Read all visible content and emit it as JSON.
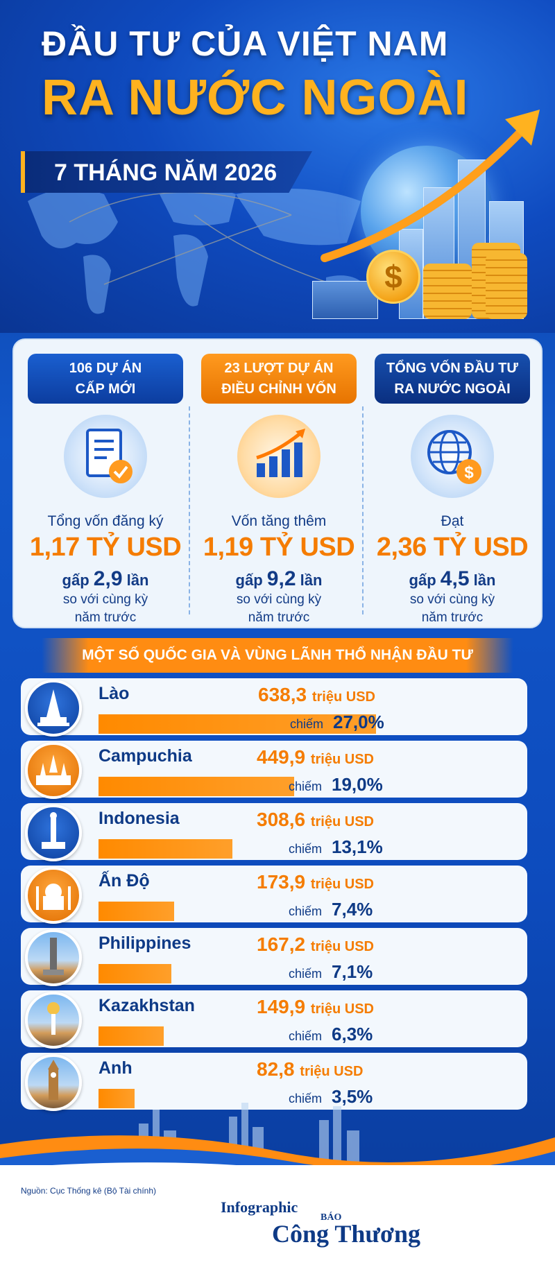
{
  "header": {
    "title_line1": "ĐẦU TƯ CỦA VIỆT NAM",
    "title_line2": "RA NƯỚC NGOÀI",
    "period": "7 THÁNG NĂM 2026"
  },
  "summary": [
    {
      "pill": "106 DỰ ÁN\nCẤP MỚI",
      "pill_line1": "106 DỰ ÁN",
      "pill_line2": "CẤP MỚI",
      "icon": "document-check-icon",
      "label": "Tổng vốn đăng ký",
      "value": "1,17 TỶ USD",
      "multiplier_prefix": "gấp",
      "multiplier_value": "2,9",
      "multiplier_suffix": "lần",
      "compare_line1": "so với cùng kỳ",
      "compare_line2": "năm trước"
    },
    {
      "pill_line1": "23 LƯỢT DỰ ÁN",
      "pill_line2": "ĐIỀU CHỈNH VỐN",
      "icon": "growth-chart-icon",
      "label": "Vốn tăng thêm",
      "value": "1,19 TỶ USD",
      "multiplier_prefix": "gấp",
      "multiplier_value": "9,2",
      "multiplier_suffix": "lần",
      "compare_line1": "so với cùng kỳ",
      "compare_line2": "năm trước"
    },
    {
      "pill_line1": "TỔNG VỐN ĐẦU TƯ",
      "pill_line2": "RA NƯỚC NGOÀI",
      "icon": "globe-dollar-icon",
      "label": "Đạt",
      "value": "2,36 TỶ USD",
      "multiplier_prefix": "gấp",
      "multiplier_value": "4,5",
      "multiplier_suffix": "lần",
      "compare_line1": "so với cùng kỳ",
      "compare_line2": "năm trước"
    }
  ],
  "section_title": "MỘT SỐ QUỐC GIA VÀ VÙNG LÃNH THỔ NHẬN ĐẦU TƯ",
  "countries": [
    {
      "name": "Lào",
      "amount": "638,3",
      "unit": "triệu USD",
      "share_label": "chiếm",
      "share": "27,0%",
      "value": 638.3,
      "icon": "that-luang-stupa-icon",
      "badge": "blue"
    },
    {
      "name": "Campuchia",
      "amount": "449,9",
      "unit": "triệu USD",
      "share_label": "chiếm",
      "share": "19,0%",
      "value": 449.9,
      "icon": "angkor-wat-icon",
      "badge": "orange"
    },
    {
      "name": "Indonesia",
      "amount": "308,6",
      "unit": "triệu USD",
      "share_label": "chiếm",
      "share": "13,1%",
      "value": 308.6,
      "icon": "monas-monument-icon",
      "badge": "blue"
    },
    {
      "name": "Ấn Độ",
      "amount": "173,9",
      "unit": "triệu USD",
      "share_label": "chiếm",
      "share": "7,4%",
      "value": 173.9,
      "icon": "taj-mahal-icon",
      "badge": "orange"
    },
    {
      "name": "Philippines",
      "amount": "167,2",
      "unit": "triệu USD",
      "share_label": "chiếm",
      "share": "7,1%",
      "value": 167.2,
      "icon": "rizal-monument-icon",
      "badge": "photo"
    },
    {
      "name": "Kazakhstan",
      "amount": "149,9",
      "unit": "triệu USD",
      "share_label": "chiếm",
      "share": "6,3%",
      "value": 149.9,
      "icon": "baiterek-tower-icon",
      "badge": "photo"
    },
    {
      "name": "Anh",
      "amount": "82,8",
      "unit": "triệu USD",
      "share_label": "chiếm",
      "share": "3,5%",
      "value": 82.8,
      "icon": "big-ben-icon",
      "badge": "photo"
    }
  ],
  "footer": {
    "source": "Nguồn: Cục Thống kê (Bộ Tài chính)",
    "infographic": "Infographic",
    "brand_small": "BÁO",
    "brand": "Công Thương"
  },
  "colors": {
    "accent_orange": "#f57c00",
    "navy": "#0e3a86",
    "header_blue": "#0f4bc0"
  }
}
